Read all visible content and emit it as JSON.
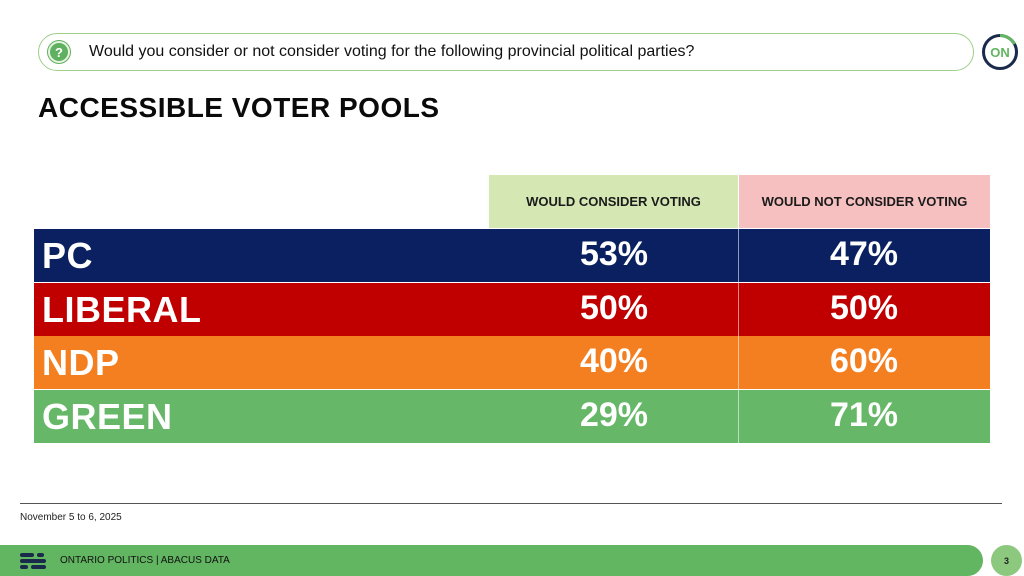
{
  "question": {
    "icon": "question-icon",
    "text": "Would you consider or not consider voting for the following provincial political parties?"
  },
  "logo": {
    "text": "ON",
    "icon": "on-logo-icon"
  },
  "title": "ACCESSIBLE VOTER POOLS",
  "colors": {
    "consider_header": "#d5e8b4",
    "not_consider_header": "#f6c0c0",
    "accent_green": "#62b561"
  },
  "chart_data": {
    "type": "table",
    "columns": [
      "WOULD CONSIDER VOTING",
      "WOULD NOT CONSIDER VOTING"
    ],
    "rows": [
      {
        "party": "PC",
        "consider": "53%",
        "not_consider": "47%",
        "color": "#0a2060"
      },
      {
        "party": "LIBERAL",
        "consider": "50%",
        "not_consider": "50%",
        "color": "#c00000"
      },
      {
        "party": "NDP",
        "consider": "40%",
        "not_consider": "60%",
        "color": "#f47f20"
      },
      {
        "party": "GREEN",
        "consider": "29%",
        "not_consider": "71%",
        "color": "#66b868"
      }
    ]
  },
  "footnote": "November 5 to 6, 2025",
  "footer": {
    "label": "ONTARIO POLITICS  |  ABACUS DATA",
    "page": "3"
  }
}
